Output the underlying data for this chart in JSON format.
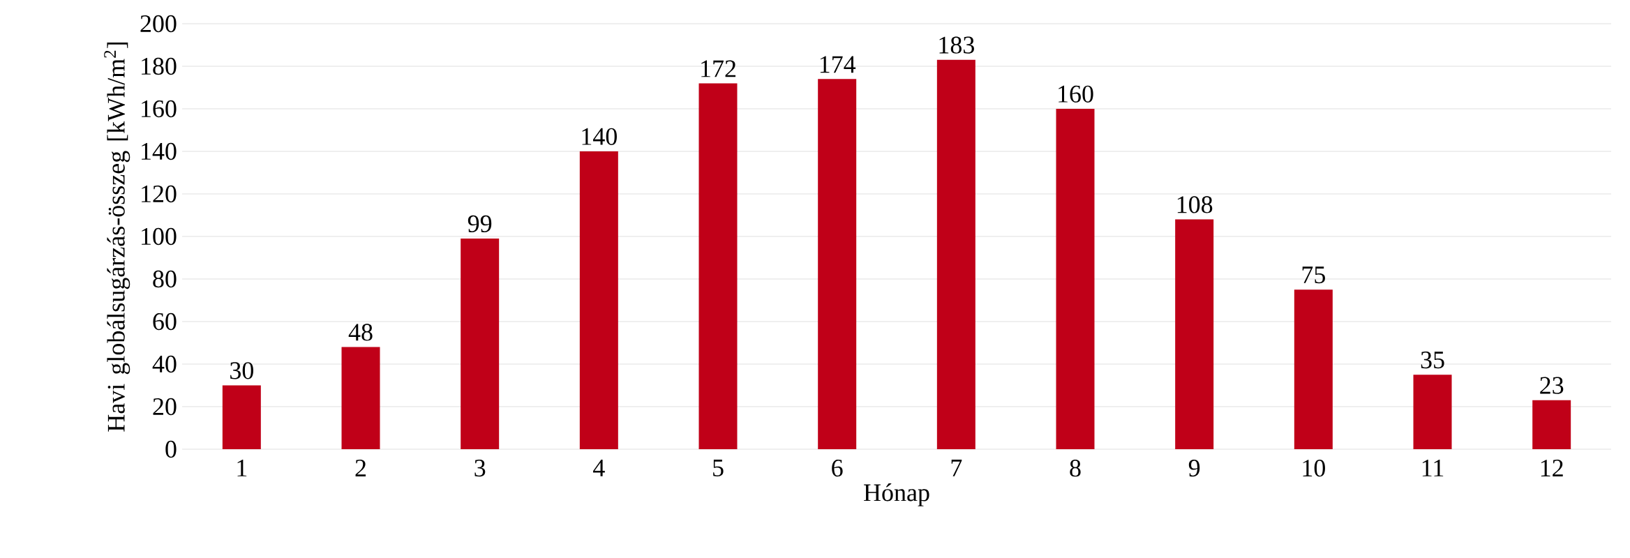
{
  "chart_data": {
    "type": "bar",
    "xlabel": "Hónap",
    "ylabel": "Havi globálsugárzás-összeg [kWh/m$^{2}$]",
    "categories": [
      "1",
      "2",
      "3",
      "4",
      "5",
      "6",
      "7",
      "8",
      "9",
      "10",
      "11",
      "12"
    ],
    "values": [
      30,
      48,
      99,
      140,
      172,
      174,
      183,
      160,
      108,
      75,
      35,
      23
    ],
    "color": "#c00018",
    "ylim": [
      0,
      200
    ],
    "yticks": [
      0,
      20,
      40,
      60,
      80,
      100,
      120,
      140,
      160,
      180,
      200
    ],
    "grid": "y",
    "data_labels": true
  }
}
